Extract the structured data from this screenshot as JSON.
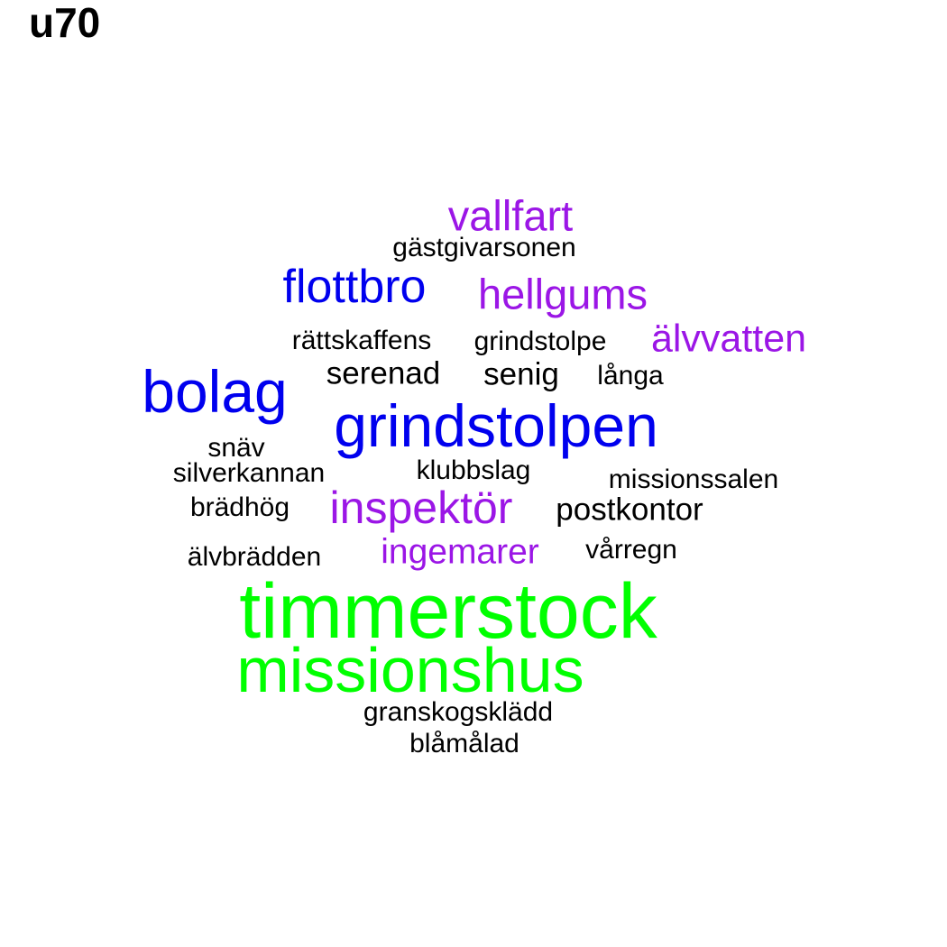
{
  "title": "u70",
  "palette": {
    "high": "#00ff00",
    "mid_blue": "#0000ee",
    "mid_purple": "#9b16e6",
    "low": "#000000"
  },
  "words": [
    {
      "text": "timmerstock",
      "color": "#00ff00"
    },
    {
      "text": "missionshus",
      "color": "#00ff00"
    },
    {
      "text": "grindstolpen",
      "color": "#0000ee"
    },
    {
      "text": "bolag",
      "color": "#0000ee"
    },
    {
      "text": "flottbro",
      "color": "#0000ee"
    },
    {
      "text": "inspektör",
      "color": "#9b16e6"
    },
    {
      "text": "hellgums",
      "color": "#9b16e6"
    },
    {
      "text": "vallfart",
      "color": "#9b16e6"
    },
    {
      "text": "älvvatten",
      "color": "#9b16e6"
    },
    {
      "text": "ingemarer",
      "color": "#9b16e6"
    },
    {
      "text": "gästgivarsonen",
      "color": "#000000"
    },
    {
      "text": "rättskaffens",
      "color": "#000000"
    },
    {
      "text": "grindstolpe",
      "color": "#000000"
    },
    {
      "text": "serenad",
      "color": "#000000"
    },
    {
      "text": "senig",
      "color": "#000000"
    },
    {
      "text": "långa",
      "color": "#000000"
    },
    {
      "text": "snäv",
      "color": "#000000"
    },
    {
      "text": "silverkannan",
      "color": "#000000"
    },
    {
      "text": "klubbslag",
      "color": "#000000"
    },
    {
      "text": "missionssalen",
      "color": "#000000"
    },
    {
      "text": "brädhög",
      "color": "#000000"
    },
    {
      "text": "postkontor",
      "color": "#000000"
    },
    {
      "text": "älvbrädden",
      "color": "#000000"
    },
    {
      "text": "vårregn",
      "color": "#000000"
    },
    {
      "text": "granskogsklädd",
      "color": "#000000"
    },
    {
      "text": "blåmålad",
      "color": "#000000"
    }
  ]
}
